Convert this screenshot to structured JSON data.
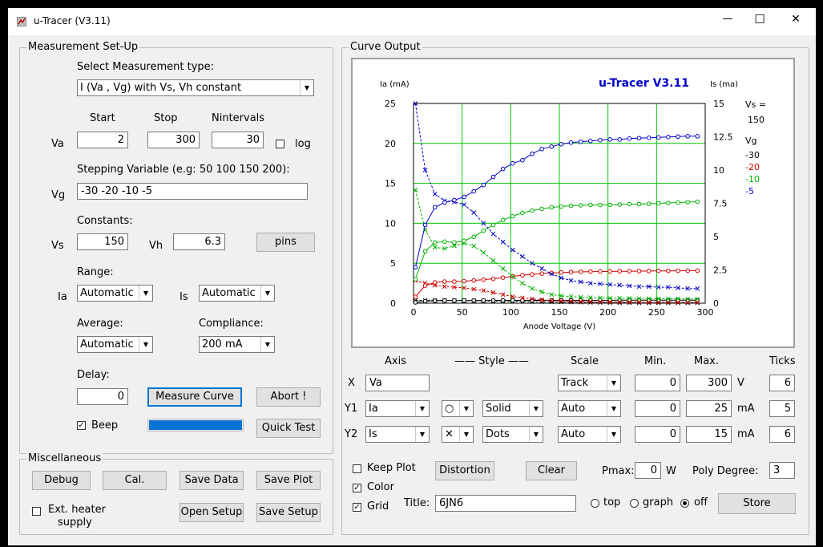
{
  "window": {
    "title": "u-Tracer (V3.11)",
    "minimize": "—",
    "maximize": "☐",
    "close": "✕"
  },
  "setup": {
    "group_label": "Measurement Set-Up",
    "select_type_label": "Select Measurement type:",
    "measurement_type": "I (Va , Vg) with Vs, Vh constant",
    "start_label": "Start",
    "stop_label": "Stop",
    "nintervals_label": "Nintervals",
    "va_label": "Va",
    "va_start": "2",
    "va_stop": "300",
    "va_nintervals": "30",
    "log_label": "log",
    "stepping_label": "Stepping Variable (e.g: 50 100 150 200):",
    "vg_label": "Vg",
    "vg_values": "-30 -20 -10 -5",
    "constants_label": "Constants:",
    "vs_label": "Vs",
    "vs_value": "150",
    "vh_label": "Vh",
    "vh_value": "6.3",
    "pins_button": "pins",
    "range_label": "Range:",
    "ia_label": "Ia",
    "ia_range": "Automatic",
    "is_label": "Is",
    "is_range": "Automatic",
    "average_label": "Average:",
    "average_value": "Automatic",
    "compliance_label": "Compliance:",
    "compliance_value": "200 mA",
    "delay_label": "Delay:",
    "delay_value": "0",
    "measure_button": "Measure Curve",
    "abort_button": "Abort !",
    "beep_label": "Beep",
    "progress": 1.0,
    "progress_color": "#0a74d6",
    "quicktest_button": "Quick Test"
  },
  "misc": {
    "group_label": "Miscellaneous",
    "debug_button": "Debug",
    "cal_button": "Cal.",
    "save_data_button": "Save Data",
    "save_plot_button": "Save Plot",
    "ext_heater_label_1": "Ext. heater",
    "ext_heater_label_2": "supply",
    "open_setup_button": "Open Setup",
    "save_setup_button": "Save Setup"
  },
  "output": {
    "group_label": "Curve Output",
    "axis_header": "Axis",
    "style_header": "—— Style ——",
    "scale_header": "Scale",
    "min_header": "Min.",
    "max_header": "Max.",
    "ticks_header": "Ticks",
    "x_row": {
      "label": "X",
      "axis": "Va",
      "scale": "Track",
      "min": "0",
      "max": "300",
      "unit": "V",
      "ticks": "6"
    },
    "y1_row": {
      "label": "Y1",
      "axis": "Ia",
      "marker": "○",
      "style": "Solid",
      "scale": "Auto",
      "min": "0",
      "max": "25",
      "unit": "mA",
      "ticks": "5"
    },
    "y2_row": {
      "label": "Y2",
      "axis": "Is",
      "marker": "✕",
      "style": "Dots",
      "scale": "Auto",
      "min": "0",
      "max": "15",
      "unit": "mA",
      "ticks": "6"
    },
    "keep_plot_label": "Keep Plot",
    "color_label": "Color",
    "grid_label": "Grid",
    "distortion_button": "Distortion",
    "clear_button": "Clear",
    "pmax_label": "Pmax:",
    "pmax_value": "0",
    "pmax_unit": "W",
    "poly_label": "Poly Degree:",
    "poly_value": "3",
    "title_label": "Title:",
    "title_value": "6JN6",
    "radio_top": "top",
    "radio_graph": "graph",
    "radio_off": "off",
    "store_button": "Store"
  },
  "chart_data": {
    "type": "line",
    "title": "u-Tracer V3.11",
    "xlabel": "Anode Voltage (V)",
    "ylabel": "Ia (mA)",
    "y2label": "Is (ma)",
    "xlim": [
      0,
      300
    ],
    "ylim": [
      0,
      25
    ],
    "y2lim": [
      0,
      15
    ],
    "x_ticks": [
      "0",
      "50",
      "100",
      "150",
      "200",
      "250",
      "300"
    ],
    "y_ticks": [
      "0",
      "5",
      "10",
      "15",
      "20",
      "25"
    ],
    "y2_ticks": [
      "0",
      "2.5",
      "5",
      "7.5",
      "10",
      "12.5",
      "15"
    ],
    "grid": true,
    "grid_color": "#00c800",
    "legend": {
      "vs_label": "Vs =",
      "vs_value": "150",
      "vg_label": "Vg"
    },
    "x": [
      2,
      12,
      22,
      32,
      42,
      52,
      62,
      72,
      82,
      92,
      102,
      112,
      122,
      132,
      142,
      152,
      162,
      172,
      182,
      192,
      202,
      212,
      222,
      232,
      242,
      252,
      262,
      272,
      282,
      292
    ],
    "series": [
      {
        "name": "-30",
        "color": "#000000",
        "ia": [
          0.1,
          0.25,
          0.3,
          0.32,
          0.33,
          0.33,
          0.34,
          0.34,
          0.34,
          0.35,
          0.35,
          0.35,
          0.35,
          0.35,
          0.36,
          0.36,
          0.36,
          0.36,
          0.36,
          0.36,
          0.36,
          0.37,
          0.37,
          0.37,
          0.37,
          0.37,
          0.37,
          0.37,
          0.37,
          0.37
        ],
        "is": [
          0.2,
          0.22,
          0.22,
          0.21,
          0.2,
          0.19,
          0.18,
          0.17,
          0.16,
          0.15,
          0.14,
          0.13,
          0.12,
          0.11,
          0.1,
          0.09,
          0.08,
          0.07,
          0.06,
          0.05,
          0.04,
          0.03,
          0.03,
          0.02,
          0.02,
          0.02,
          0.02,
          0.02,
          0.02,
          0.02
        ]
      },
      {
        "name": "-20",
        "color": "#d00000",
        "ia": [
          0.8,
          2.2,
          2.6,
          2.7,
          2.7,
          2.75,
          2.85,
          2.95,
          3.05,
          3.2,
          3.35,
          3.5,
          3.6,
          3.7,
          3.78,
          3.85,
          3.9,
          3.93,
          3.95,
          3.97,
          3.98,
          4.0,
          4.0,
          4.02,
          4.03,
          4.05,
          4.05,
          4.06,
          4.07,
          4.08
        ],
        "is": [
          1.7,
          1.5,
          1.35,
          1.25,
          1.2,
          1.15,
          1.05,
          0.95,
          0.8,
          0.65,
          0.5,
          0.4,
          0.32,
          0.25,
          0.2,
          0.17,
          0.15,
          0.13,
          0.12,
          0.11,
          0.1,
          0.1,
          0.09,
          0.09,
          0.08,
          0.08,
          0.08,
          0.07,
          0.07,
          0.07
        ]
      },
      {
        "name": "-10",
        "color": "#00b000",
        "ia": [
          3.0,
          6.5,
          7.6,
          7.7,
          7.6,
          7.8,
          8.3,
          9.1,
          9.8,
          10.4,
          10.9,
          11.3,
          11.6,
          11.8,
          12.0,
          12.1,
          12.2,
          12.25,
          12.3,
          12.3,
          12.3,
          12.35,
          12.4,
          12.4,
          12.45,
          12.5,
          12.55,
          12.6,
          12.65,
          12.7
        ],
        "is": [
          8.5,
          5.5,
          4.2,
          4.1,
          4.3,
          4.5,
          4.3,
          3.8,
          3.2,
          2.6,
          2.0,
          1.5,
          1.1,
          0.85,
          0.65,
          0.55,
          0.5,
          0.45,
          0.42,
          0.4,
          0.38,
          0.37,
          0.36,
          0.35,
          0.35,
          0.34,
          0.33,
          0.33,
          0.32,
          0.32
        ]
      },
      {
        "name": "-5",
        "color": "#0000c8",
        "ia": [
          4.5,
          9.8,
          12.0,
          12.6,
          12.9,
          13.3,
          14.0,
          14.8,
          15.8,
          16.8,
          17.5,
          17.9,
          18.7,
          19.3,
          19.6,
          19.9,
          20.1,
          20.2,
          20.3,
          20.4,
          20.5,
          20.5,
          20.6,
          20.65,
          20.7,
          20.75,
          20.8,
          20.85,
          20.9,
          20.9
        ],
        "is": [
          15.0,
          10.0,
          8.2,
          7.7,
          7.6,
          7.4,
          6.8,
          6.0,
          5.2,
          4.6,
          4.0,
          3.5,
          3.0,
          2.6,
          2.2,
          1.9,
          1.7,
          1.6,
          1.5,
          1.45,
          1.4,
          1.35,
          1.3,
          1.25,
          1.25,
          1.2,
          1.2,
          1.15,
          1.1,
          1.1
        ]
      }
    ]
  }
}
